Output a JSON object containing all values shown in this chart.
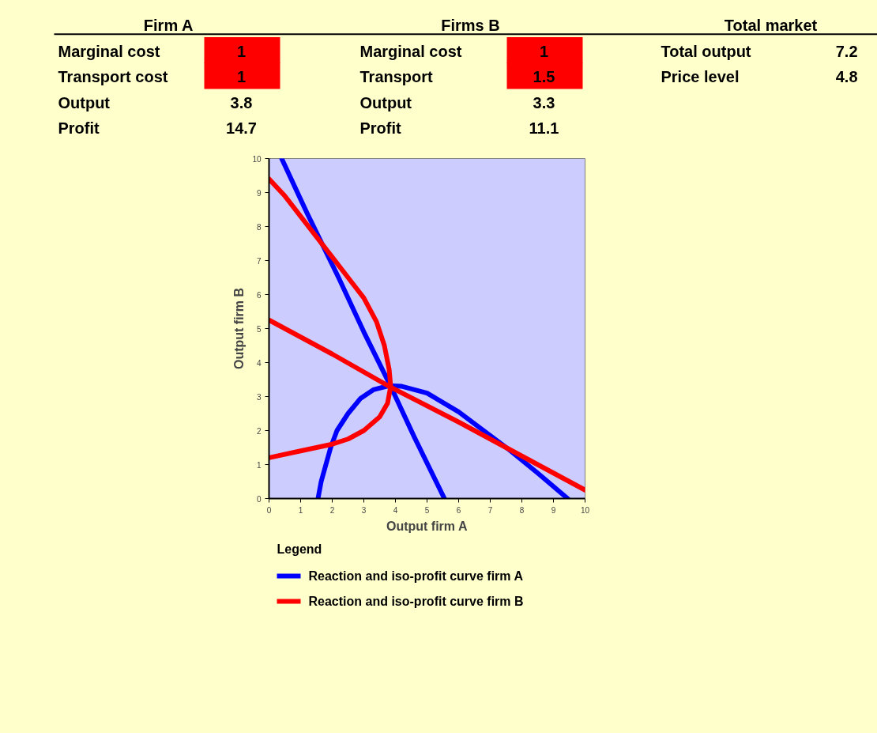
{
  "chart_data": {
    "type": "line",
    "xlabel": "Output firm A",
    "ylabel": "Output firm B",
    "legend_title": "Legend",
    "xlim": [
      0,
      10
    ],
    "ylim": [
      0,
      10
    ],
    "xticks": [
      0,
      1,
      2,
      3,
      4,
      5,
      6,
      7,
      8,
      9,
      10
    ],
    "yticks": [
      0,
      1,
      2,
      3,
      4,
      5,
      6,
      7,
      8,
      9,
      10
    ],
    "grid": false,
    "legend": "bottom",
    "line_style": "solid",
    "series": [
      {
        "name": "Reaction  and iso-profit curve firm A",
        "color": "#0000ff",
        "x": [
          0.4,
          1.2,
          2.2,
          3.0,
          3.85,
          4.6,
          5.55
        ],
        "values": [
          10,
          8.4,
          6.5,
          4.9,
          3.3,
          1.8,
          0
        ]
      },
      {
        "color": "#0000ff",
        "x": [
          1.55,
          1.65,
          1.8,
          1.95,
          2.15,
          2.5,
          2.9,
          3.3,
          3.8,
          4.2,
          5.0,
          6.0,
          7.0,
          7.55,
          8.5,
          9.45
        ],
        "values": [
          0,
          0.5,
          1.0,
          1.5,
          2.0,
          2.5,
          2.95,
          3.2,
          3.32,
          3.3,
          3.1,
          2.55,
          1.85,
          1.47,
          0.75,
          0
        ]
      },
      {
        "name": "Reaction and iso-profit curve firm B",
        "color": "#ff0000",
        "x": [
          0,
          2,
          3.8,
          6,
          8,
          10
        ],
        "values": [
          5.25,
          4.25,
          3.3,
          2.25,
          1.25,
          0.25
        ]
      },
      {
        "color": "#ff0000",
        "x": [
          0,
          0.5,
          1.0,
          1.5,
          2.0,
          2.5,
          3.0,
          3.4,
          3.65,
          3.8,
          3.85,
          3.75,
          3.5,
          3.0,
          2.5,
          2.0,
          1.0,
          0
        ],
        "values": [
          9.4,
          8.9,
          8.3,
          7.7,
          7.1,
          6.5,
          5.9,
          5.2,
          4.5,
          3.8,
          3.3,
          2.8,
          2.4,
          2.0,
          1.75,
          1.6,
          1.4,
          1.2
        ]
      }
    ],
    "annotations": [
      "Firm A",
      "Firms B",
      "Total market",
      "Marginal cost",
      "1",
      "Marginal cost",
      "1",
      "Total output",
      "7.2",
      "Transport cost",
      "1",
      "Transport",
      "1.5",
      "Price level",
      "4.8",
      "Output",
      "3.8",
      "Output",
      "3.3",
      "Profit",
      "14.7",
      "Profit",
      "11.1"
    ]
  }
}
